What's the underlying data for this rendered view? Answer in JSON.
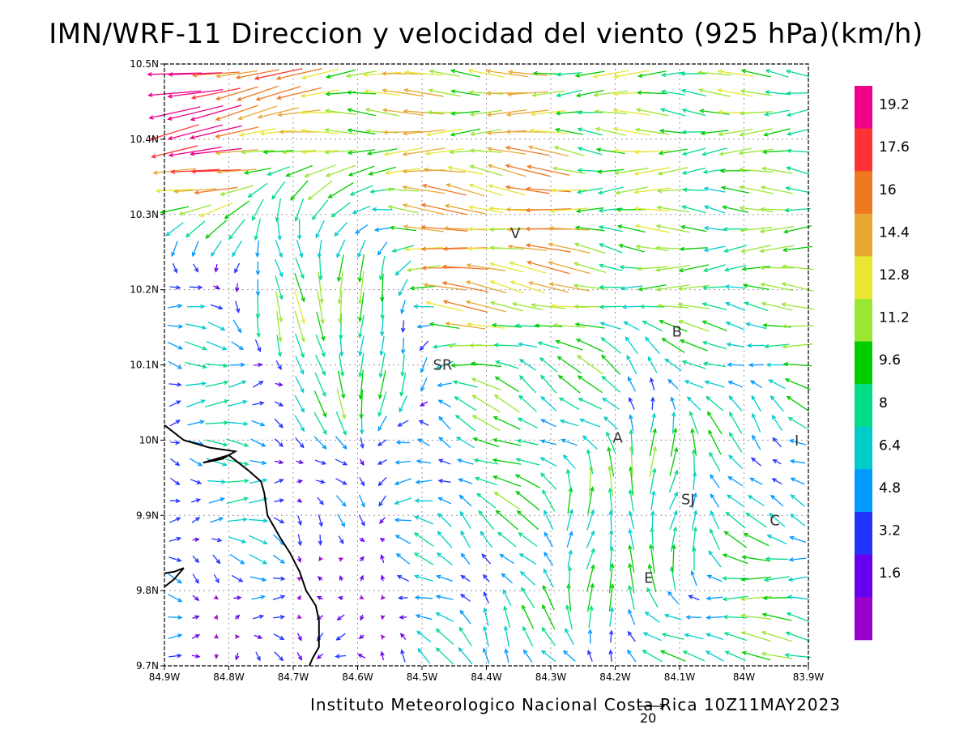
{
  "title": "IMN/WRF-11 Direccion y velocidad del viento (925 hPa)(km/h)",
  "footer": "Instituto Meteorologico Nacional Costa Rica 10Z11MAY2023",
  "reference_vector_label": "20",
  "x_ticks": [
    "84.9W",
    "84.8W",
    "84.7W",
    "84.6W",
    "84.5W",
    "84.4W",
    "84.3W",
    "84.2W",
    "84.1W",
    "84W",
    "83.9W"
  ],
  "y_ticks": [
    "10.5N",
    "10.4N",
    "10.3N",
    "10.2N",
    "10.1N",
    "10N",
    "9.9N",
    "9.8N",
    "9.7N"
  ],
  "cities": [
    {
      "label": "V",
      "lon": -84.355,
      "lat": 10.274
    },
    {
      "label": "B",
      "lon": -84.104,
      "lat": 10.143
    },
    {
      "label": "SR",
      "lon": -84.468,
      "lat": 10.099
    },
    {
      "label": "A",
      "lon": -84.196,
      "lat": 10.002
    },
    {
      "label": "I",
      "lon": -83.918,
      "lat": 9.998
    },
    {
      "label": "SJ",
      "lon": -84.087,
      "lat": 9.92
    },
    {
      "label": "C",
      "lon": -83.952,
      "lat": 9.892
    },
    {
      "label": "E",
      "lon": -84.148,
      "lat": 9.816
    }
  ],
  "colorbar": {
    "colors": [
      "#9900cc",
      "#6600ee",
      "#2233ff",
      "#0099ff",
      "#00cccc",
      "#00dd88",
      "#00cc00",
      "#99e633",
      "#e6e633",
      "#e6a833",
      "#ee7722",
      "#ff3333",
      "#ee0088"
    ],
    "labels": [
      "1.6",
      "3.2",
      "4.8",
      "6.4",
      "8",
      "9.6",
      "11.2",
      "12.8",
      "14.4",
      "16",
      "17.6",
      "19.2"
    ]
  },
  "chart_data": {
    "type": "wind_vector_map",
    "variable": "Direccion y velocidad del viento (925 hPa)",
    "units": "km/h",
    "lon_range": [
      -84.9,
      -83.9
    ],
    "lat_range": [
      9.7,
      10.5
    ],
    "grid_points": [
      31,
      31
    ],
    "coastline": [
      [
        -84.9,
        10.02
      ],
      [
        -84.87,
        10.0
      ],
      [
        -84.83,
        9.99
      ],
      [
        -84.79,
        9.985
      ],
      [
        -84.81,
        9.975
      ],
      [
        -84.84,
        9.97
      ],
      [
        -84.82,
        9.975
      ],
      [
        -84.8,
        9.98
      ],
      [
        -84.77,
        9.96
      ],
      [
        -84.75,
        9.945
      ],
      [
        -84.745,
        9.93
      ],
      [
        -84.74,
        9.9
      ],
      [
        -84.72,
        9.87
      ],
      [
        -84.705,
        9.85
      ],
      [
        -84.69,
        9.825
      ],
      [
        -84.68,
        9.8
      ],
      [
        -84.665,
        9.78
      ],
      [
        -84.66,
        9.76
      ],
      [
        -84.66,
        9.74
      ],
      [
        -84.66,
        9.725
      ],
      [
        -84.67,
        9.71
      ],
      [
        -84.675,
        9.7
      ]
    ],
    "coastline_island": [
      [
        -84.9,
        9.805
      ],
      [
        -84.885,
        9.815
      ],
      [
        -84.87,
        9.83
      ],
      [
        -84.885,
        9.825
      ],
      [
        -84.9,
        9.823
      ]
    ],
    "wind_field_samples": [
      {
        "lon": -84.88,
        "lat": 10.48,
        "u": -18,
        "v": -3
      },
      {
        "lon": -84.5,
        "lat": 10.46,
        "u": -13,
        "v": 0
      },
      {
        "lon": -84.1,
        "lat": 10.38,
        "u": -11,
        "v": 0
      },
      {
        "lon": -84.05,
        "lat": 10.33,
        "u": -10,
        "v": 0
      },
      {
        "lon": -84.4,
        "lat": 10.27,
        "u": -15,
        "v": 2
      },
      {
        "lon": -84.8,
        "lat": 10.05,
        "u": 6,
        "v": 0
      },
      {
        "lon": -84.65,
        "lat": 10.15,
        "u": 1,
        "v": -10
      },
      {
        "lon": -84.32,
        "lat": 10.0,
        "u": -8,
        "v": 4
      },
      {
        "lon": -84.2,
        "lat": 9.92,
        "u": 1,
        "v": 9
      },
      {
        "lon": -83.95,
        "lat": 9.72,
        "u": -9,
        "v": 1
      }
    ]
  }
}
